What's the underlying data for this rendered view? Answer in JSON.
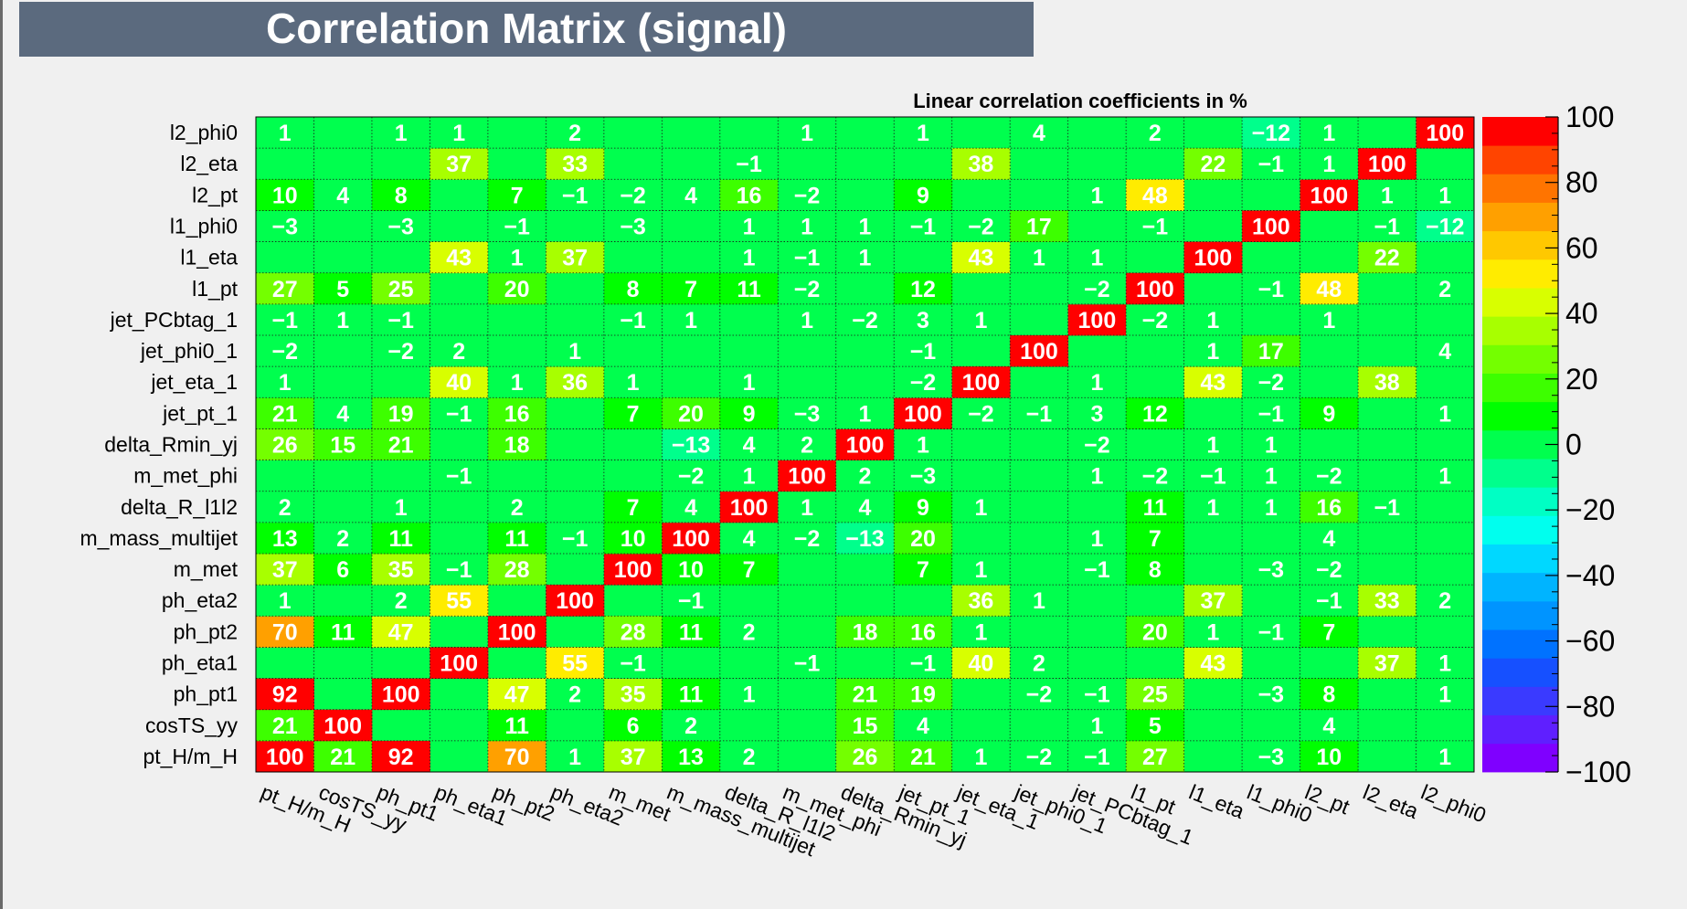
{
  "page": {
    "title": "Correlation Matrix (signal)"
  },
  "chart_data": {
    "type": "heatmap",
    "title": "Linear correlation coefficients in %",
    "variables": [
      "pt_H/m_H",
      "cosTS_yy",
      "ph_pt1",
      "ph_eta1",
      "ph_pt2",
      "ph_eta2",
      "m_met",
      "m_mass_multijet",
      "delta_R_l1l2",
      "m_met_phi",
      "delta_Rmin_yj",
      "jet_pt_1",
      "jet_eta_1",
      "jet_phi0_1",
      "jet_PCbtag_1",
      "l1_pt",
      "l1_eta",
      "l1_phi0",
      "l2_pt",
      "l2_eta",
      "l2_phi0"
    ],
    "matrix": [
      [
        100,
        21,
        92,
        null,
        70,
        1,
        37,
        13,
        2,
        null,
        26,
        21,
        1,
        -2,
        -1,
        27,
        null,
        -3,
        10,
        null,
        1
      ],
      [
        21,
        100,
        null,
        null,
        11,
        null,
        6,
        2,
        null,
        null,
        15,
        4,
        null,
        null,
        1,
        5,
        null,
        null,
        4,
        null,
        null
      ],
      [
        92,
        null,
        100,
        null,
        47,
        2,
        35,
        11,
        1,
        null,
        21,
        19,
        null,
        -2,
        -1,
        25,
        null,
        -3,
        8,
        null,
        1
      ],
      [
        null,
        null,
        null,
        100,
        null,
        55,
        -1,
        null,
        null,
        -1,
        null,
        -1,
        40,
        2,
        null,
        null,
        43,
        null,
        null,
        37,
        1
      ],
      [
        70,
        11,
        47,
        null,
        100,
        null,
        28,
        11,
        2,
        null,
        18,
        16,
        1,
        null,
        null,
        20,
        1,
        -1,
        7,
        null,
        null
      ],
      [
        1,
        null,
        2,
        55,
        null,
        100,
        null,
        -1,
        null,
        null,
        null,
        null,
        36,
        1,
        null,
        null,
        37,
        null,
        -1,
        33,
        2
      ],
      [
        37,
        6,
        35,
        -1,
        28,
        null,
        100,
        10,
        7,
        null,
        null,
        7,
        1,
        null,
        -1,
        8,
        null,
        -3,
        -2,
        null,
        null
      ],
      [
        13,
        2,
        11,
        null,
        11,
        -1,
        10,
        100,
        4,
        -2,
        -13,
        20,
        null,
        null,
        1,
        7,
        null,
        null,
        4,
        null,
        null
      ],
      [
        2,
        null,
        1,
        null,
        2,
        null,
        7,
        4,
        100,
        1,
        4,
        9,
        1,
        null,
        null,
        11,
        1,
        1,
        16,
        -1,
        null
      ],
      [
        null,
        null,
        null,
        -1,
        null,
        null,
        null,
        -2,
        1,
        100,
        2,
        -3,
        null,
        null,
        1,
        -2,
        -1,
        1,
        -2,
        null,
        1
      ],
      [
        26,
        15,
        21,
        null,
        18,
        null,
        null,
        -13,
        4,
        2,
        100,
        1,
        null,
        null,
        -2,
        null,
        1,
        1,
        null,
        null,
        null
      ],
      [
        21,
        4,
        19,
        -1,
        16,
        null,
        7,
        20,
        9,
        -3,
        1,
        100,
        -2,
        -1,
        3,
        12,
        null,
        -1,
        9,
        null,
        1
      ],
      [
        1,
        null,
        null,
        40,
        1,
        36,
        1,
        null,
        1,
        null,
        null,
        -2,
        100,
        null,
        1,
        null,
        43,
        -2,
        null,
        38,
        null
      ],
      [
        -2,
        null,
        -2,
        2,
        null,
        1,
        null,
        null,
        null,
        null,
        null,
        -1,
        null,
        100,
        null,
        null,
        1,
        17,
        null,
        null,
        4
      ],
      [
        -1,
        1,
        -1,
        null,
        null,
        null,
        -1,
        1,
        null,
        1,
        -2,
        3,
        1,
        null,
        100,
        -2,
        1,
        null,
        1,
        null,
        null
      ],
      [
        27,
        5,
        25,
        null,
        20,
        null,
        8,
        7,
        11,
        -2,
        null,
        12,
        null,
        null,
        -2,
        100,
        null,
        -1,
        48,
        null,
        2
      ],
      [
        null,
        null,
        null,
        43,
        1,
        37,
        null,
        null,
        1,
        -1,
        1,
        null,
        43,
        1,
        1,
        null,
        100,
        null,
        null,
        22,
        null
      ],
      [
        -3,
        null,
        -3,
        null,
        -1,
        null,
        -3,
        null,
        1,
        1,
        1,
        -1,
        -2,
        17,
        null,
        -1,
        null,
        100,
        null,
        -1,
        -12
      ],
      [
        10,
        4,
        8,
        null,
        7,
        -1,
        -2,
        4,
        16,
        -2,
        null,
        9,
        null,
        null,
        1,
        48,
        null,
        null,
        100,
        1,
        1
      ],
      [
        null,
        null,
        null,
        37,
        null,
        33,
        null,
        null,
        -1,
        null,
        null,
        null,
        38,
        null,
        null,
        null,
        22,
        -1,
        1,
        100,
        null
      ],
      [
        1,
        null,
        1,
        1,
        null,
        2,
        null,
        null,
        null,
        1,
        null,
        1,
        null,
        4,
        null,
        2,
        null,
        -12,
        1,
        null,
        100
      ]
    ],
    "zlim": [
      -100,
      100
    ],
    "colorbar": {
      "ticks": [
        100,
        80,
        60,
        40,
        20,
        0,
        -20,
        -40,
        -60,
        -80,
        -100
      ]
    },
    "colors": [
      "#7f00ff",
      "#5f1fff",
      "#3a3aff",
      "#1650ff",
      "#0072ff",
      "#0094ff",
      "#00b4ff",
      "#00d8ff",
      "#00ffee",
      "#00ffc4",
      "#00ff8c",
      "#00ff4e",
      "#00ff00",
      "#3dff00",
      "#74ff00",
      "#a8ff00",
      "#d8ff00",
      "#ffec00",
      "#ffc800",
      "#ffa000",
      "#ff7400",
      "#ff4400",
      "#ff0000"
    ]
  }
}
